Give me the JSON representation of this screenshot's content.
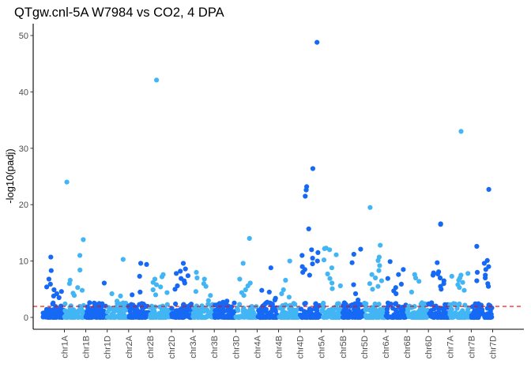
{
  "chart_data": {
    "type": "scatter",
    "title": "QTgw.cnl-5A W7984 vs CO2, 4 DPA",
    "xlabel": "",
    "ylabel": "-log10(padj)",
    "ylim": [
      -2.1,
      52.1
    ],
    "yticks": [
      0,
      10,
      20,
      30,
      40,
      50
    ],
    "grid": false,
    "legend": "none",
    "threshold": {
      "value": 1.95,
      "color": "#ff0000",
      "style": "dashed"
    },
    "colors": {
      "odd": "#1569f4",
      "even": "#42b6f5"
    },
    "categories": [
      "chr1A",
      "chr1B",
      "chr1D",
      "chr2A",
      "chr2B",
      "chr2D",
      "chr3A",
      "chr3B",
      "chr3D",
      "chr4A",
      "chr4B",
      "chr4D",
      "chr5A",
      "chr5B",
      "chr5D",
      "chr6A",
      "chr6B",
      "chr6D",
      "chr7A",
      "chr7B",
      "chr7D"
    ],
    "chromosomes": [
      {
        "name": "chr1A",
        "peaks": [
          10.7,
          8.3,
          6.8,
          5.9,
          5.4,
          4.9,
          4.6,
          4.2,
          3.8,
          3.5
        ]
      },
      {
        "name": "chr1B",
        "peaks": [
          24.0,
          13.8,
          11.0,
          8.4,
          6.6,
          6.0,
          5.3,
          4.8,
          4.3,
          3.9
        ]
      },
      {
        "name": "chr1D",
        "peaks": [
          6.1,
          2.6,
          2.3,
          1.9,
          1.6,
          1.3,
          1.1
        ]
      },
      {
        "name": "chr2A",
        "peaks": [
          10.3,
          4.2,
          3.8,
          2.9,
          2.5,
          2.2,
          1.8
        ]
      },
      {
        "name": "chr2B",
        "peaks": [
          9.6,
          9.4,
          7.3,
          4.5,
          4.0,
          2.3,
          1.7
        ]
      },
      {
        "name": "chr2D",
        "peaks": [
          42.1,
          7.6,
          7.2,
          6.8,
          6.2,
          5.8,
          5.4,
          4.9,
          4.4,
          4.0
        ]
      },
      {
        "name": "chr3A",
        "peaks": [
          9.6,
          8.6,
          8.2,
          7.8,
          7.4,
          6.9,
          6.5,
          6.1,
          5.6,
          5.0
        ]
      },
      {
        "name": "chr3B",
        "peaks": [
          8.0,
          7.0,
          6.8,
          6.0,
          5.5,
          4.6,
          3.9,
          3.0
        ]
      },
      {
        "name": "chr3D",
        "peaks": [
          2.9,
          2.7,
          2.5,
          2.2,
          1.9,
          1.7
        ]
      },
      {
        "name": "chr4A",
        "peaks": [
          14.0,
          9.6,
          6.8,
          6.1,
          5.6,
          4.9,
          4.4,
          3.9
        ]
      },
      {
        "name": "chr4B",
        "peaks": [
          8.8,
          4.8,
          4.5,
          3.4,
          3.1,
          2.7
        ]
      },
      {
        "name": "chr4D",
        "peaks": [
          10.0,
          6.6,
          4.9,
          4.2,
          3.6
        ]
      },
      {
        "name": "chr5A",
        "peaks": [
          48.8,
          26.4,
          23.2,
          22.6,
          21.5,
          15.7,
          12.0,
          11.5,
          11.0,
          10.5,
          10.0,
          9.5,
          9.0,
          8.5,
          8.0,
          7.5
        ]
      },
      {
        "name": "chr5B",
        "peaks": [
          12.3,
          12.2,
          12.0,
          11.1,
          10.2,
          8.8,
          7.7,
          6.9,
          6.1,
          5.6,
          5.1
        ]
      },
      {
        "name": "chr5D",
        "peaks": [
          12.1,
          11.2,
          9.7,
          5.8,
          4.2,
          3.1
        ]
      },
      {
        "name": "chr6A",
        "peaks": [
          19.5,
          12.8,
          10.7,
          10.1,
          9.2,
          8.3,
          7.6,
          7.0,
          6.5,
          6.0,
          5.5,
          5.0
        ]
      },
      {
        "name": "chr6B",
        "peaks": [
          9.9,
          8.5,
          7.6,
          6.9,
          5.9,
          5.3,
          4.7,
          4.2
        ]
      },
      {
        "name": "chr6D",
        "peaks": [
          7.6,
          7.0,
          6.4,
          4.5,
          2.6
        ]
      },
      {
        "name": "chr7A",
        "peaks": [
          16.6,
          16.5,
          9.7,
          8.1,
          7.9,
          7.7,
          7.5,
          7.0,
          6.5,
          6.0,
          5.5,
          5.0
        ]
      },
      {
        "name": "chr7B",
        "peaks": [
          33.0,
          7.8,
          7.5,
          7.3,
          7.0,
          6.6,
          6.2,
          5.8,
          5.3,
          4.8
        ]
      },
      {
        "name": "chr7D",
        "peaks": [
          22.7,
          12.6,
          10.1,
          9.6,
          9.0,
          8.5,
          8.0,
          7.5,
          7.0,
          6.5,
          6.0,
          5.5
        ]
      }
    ]
  }
}
